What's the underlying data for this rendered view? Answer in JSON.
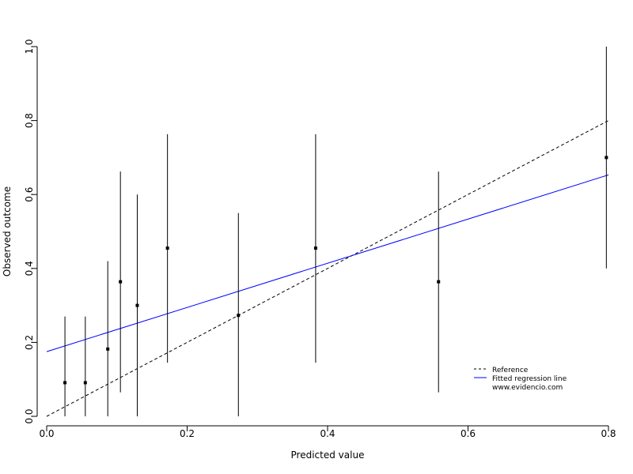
{
  "chart_data": {
    "type": "scatter",
    "xlabel": "Predicted value",
    "ylabel": "Observed outcome",
    "xlim": [
      0,
      0.8
    ],
    "ylim": [
      0,
      1
    ],
    "x_ticks": [
      "0.0",
      "0.2",
      "0.4",
      "0.6",
      "0.8"
    ],
    "y_ticks": [
      "0.0",
      "0.2",
      "0.4",
      "0.6",
      "0.8",
      "1.0"
    ],
    "grid": false,
    "points": [
      {
        "x": 0.026,
        "y": 0.091,
        "lower": 0.0,
        "upper": 0.27
      },
      {
        "x": 0.055,
        "y": 0.091,
        "lower": 0.0,
        "upper": 0.27
      },
      {
        "x": 0.087,
        "y": 0.182,
        "lower": 0.0,
        "upper": 0.42
      },
      {
        "x": 0.105,
        "y": 0.364,
        "lower": 0.065,
        "upper": 0.662
      },
      {
        "x": 0.129,
        "y": 0.3,
        "lower": 0.0,
        "upper": 0.6
      },
      {
        "x": 0.172,
        "y": 0.455,
        "lower": 0.145,
        "upper": 0.763
      },
      {
        "x": 0.273,
        "y": 0.273,
        "lower": 0.0,
        "upper": 0.55
      },
      {
        "x": 0.383,
        "y": 0.455,
        "lower": 0.145,
        "upper": 0.763
      },
      {
        "x": 0.558,
        "y": 0.364,
        "lower": 0.065,
        "upper": 0.662
      },
      {
        "x": 0.797,
        "y": 0.7,
        "lower": 0.4,
        "upper": 1.0
      }
    ],
    "lines": [
      {
        "name": "Reference",
        "style": "dashed",
        "color": "#000000",
        "x": [
          0,
          0.8
        ],
        "y": [
          0,
          0.8
        ]
      },
      {
        "name": "Fitted regression line",
        "style": "solid",
        "color": "#0000ff",
        "x": [
          0,
          0.8
        ],
        "y": [
          0.175,
          0.653
        ]
      }
    ],
    "legend": {
      "position": "bottom-right",
      "entries": [
        "Reference",
        "Fitted regression line"
      ],
      "footer": "www.evidencio.com"
    }
  }
}
